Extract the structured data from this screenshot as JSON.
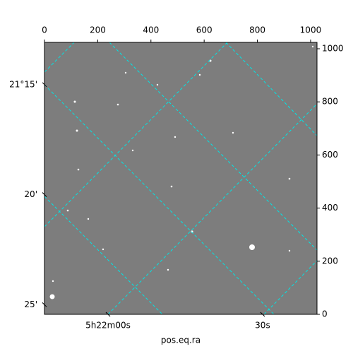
{
  "chart_data": {
    "type": "image",
    "xlabel": "pos.eq.ra",
    "xlim": [
      0,
      1024
    ],
    "xticks": [
      0,
      200,
      400,
      600,
      800,
      1000
    ],
    "ylim": [
      0,
      1024
    ],
    "yticks": [
      0,
      200,
      400,
      600,
      800,
      1000
    ],
    "ra_lim": [
      80.4486,
      80.669
    ],
    "ra_ticks": [
      {
        "value": 80.5,
        "label": "5h22m00s"
      },
      {
        "value": 80.625,
        "label": "30s"
      }
    ],
    "dec_lim": [
      21.218,
      21.424
    ],
    "dec_ticks": [
      {
        "value": 21.25,
        "label": "21°15'"
      },
      {
        "value": 21.3333,
        "label": "20'"
      },
      {
        "value": 21.4167,
        "label": "25'"
      }
    ],
    "grid_color": "#00e5e5"
  }
}
